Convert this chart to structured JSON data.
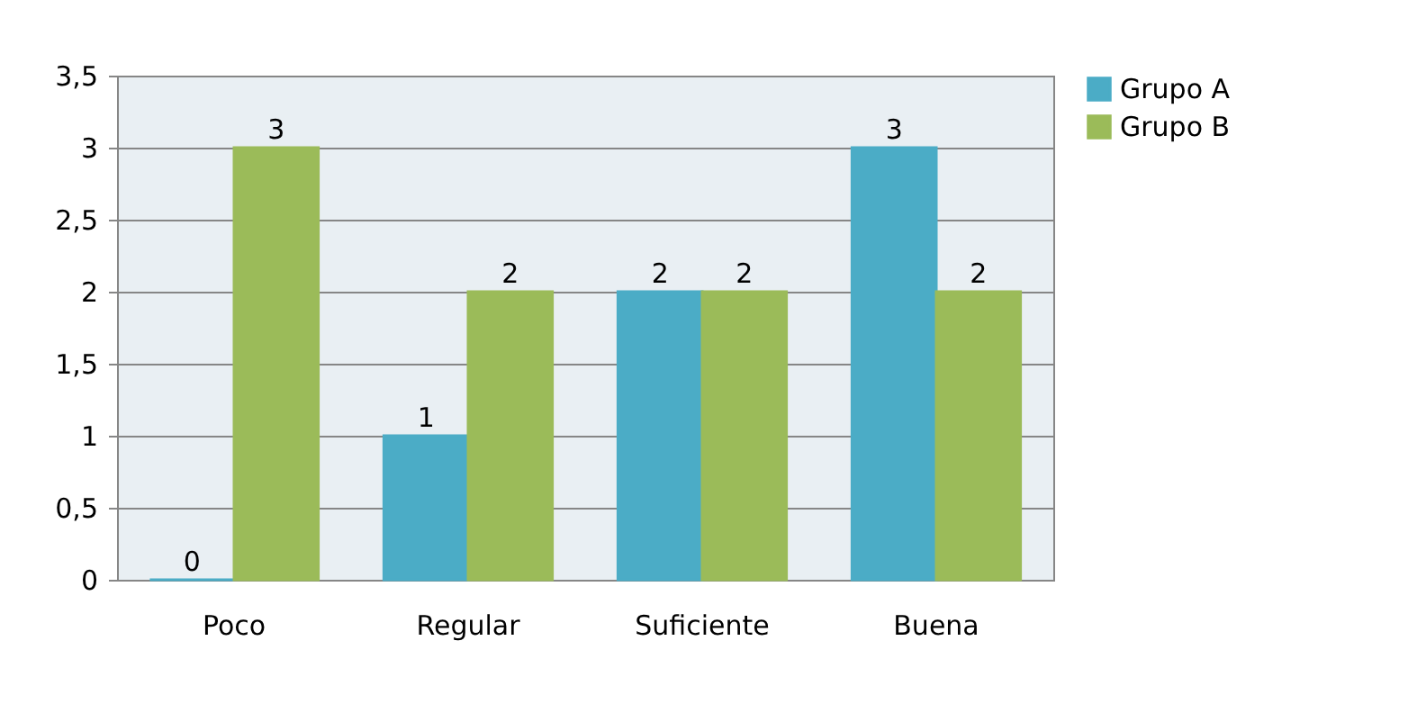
{
  "chart_data": {
    "type": "bar",
    "categories": [
      "Poco",
      "Regular",
      "Suficiente",
      "Buena"
    ],
    "series": [
      {
        "name": "Grupo A",
        "color": "#4bacc6",
        "values": [
          0,
          1,
          2,
          3
        ]
      },
      {
        "name": "Grupo B",
        "color": "#9bbb59",
        "values": [
          3,
          2,
          2,
          2
        ]
      }
    ],
    "ylim": [
      0,
      3.5
    ],
    "yticks": [
      0,
      {
        "value": 0.5,
        "label": "0,5"
      },
      1,
      {
        "value": 1.5,
        "label": "1,5"
      },
      2,
      {
        "value": 2.5,
        "label": "2,5"
      },
      3,
      {
        "value": 3.5,
        "label": "3,5"
      }
    ],
    "data_labels": true,
    "grid": "y",
    "legend": "right"
  }
}
